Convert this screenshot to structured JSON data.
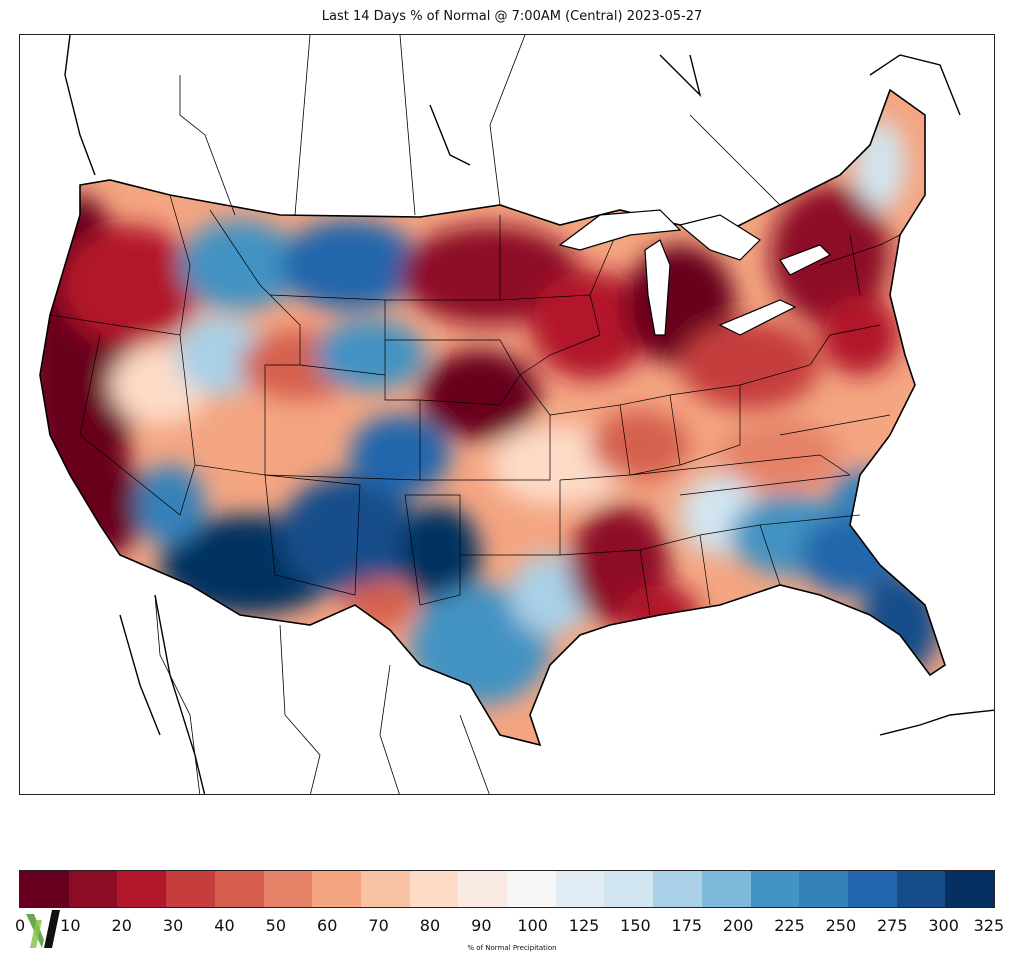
{
  "title": "Last 14 Days % of Normal @ 7:00AM (Central) 2023-05-27",
  "colorbar": {
    "label": "% of Normal Precipitation",
    "colors": [
      "#67001f",
      "#8d0c25",
      "#b2182b",
      "#c53e3d",
      "#d6604d",
      "#e58267",
      "#f4a582",
      "#f8c2a4",
      "#fddbc7",
      "#f9ebe3",
      "#f7f7f7",
      "#e1ecf4",
      "#d1e5f0",
      "#a9d0e6",
      "#7eb8da",
      "#4393c3",
      "#3581ba",
      "#2166ac",
      "#154d8a",
      "#053061"
    ],
    "ticks": [
      "0",
      "10",
      "20",
      "30",
      "40",
      "50",
      "60",
      "70",
      "80",
      "90",
      "100",
      "125",
      "150",
      "175",
      "200",
      "225",
      "250",
      "275",
      "300",
      "325"
    ]
  },
  "map": {
    "region": "Contiguous United States",
    "logo_icon": "nv-logo-icon"
  }
}
